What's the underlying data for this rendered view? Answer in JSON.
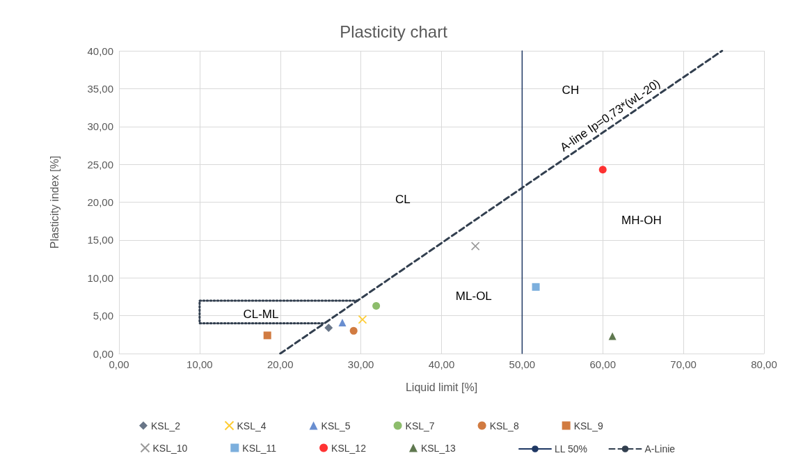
{
  "chart_data": {
    "type": "scatter",
    "title": "Plasticity chart",
    "xlabel": "Liquid limit [%]",
    "ylabel": "Plasticity index [%]",
    "xlim": [
      0,
      80
    ],
    "ylim": [
      0,
      40
    ],
    "xticks": [
      {
        "value": 0,
        "label": "0,00"
      },
      {
        "value": 10,
        "label": "10,00"
      },
      {
        "value": 20,
        "label": "20,00"
      },
      {
        "value": 30,
        "label": "30,00"
      },
      {
        "value": 40,
        "label": "40,00"
      },
      {
        "value": 50,
        "label": "50,00"
      },
      {
        "value": 60,
        "label": "60,00"
      },
      {
        "value": 70,
        "label": "70,00"
      },
      {
        "value": 80,
        "label": "80,00"
      }
    ],
    "yticks": [
      {
        "value": 0,
        "label": "0,00"
      },
      {
        "value": 5,
        "label": "5,00"
      },
      {
        "value": 10,
        "label": "10,00"
      },
      {
        "value": 15,
        "label": "15,00"
      },
      {
        "value": 20,
        "label": "20,00"
      },
      {
        "value": 25,
        "label": "25,00"
      },
      {
        "value": 30,
        "label": "30,00"
      },
      {
        "value": 35,
        "label": "35,00"
      },
      {
        "value": 40,
        "label": "40,00"
      }
    ],
    "grid": true,
    "legend": "bottom",
    "series": [
      {
        "name": "KSL_2",
        "color": "#44546a",
        "marker": "diamond",
        "x": [
          26.0
        ],
        "values": [
          3.4
        ]
      },
      {
        "name": "KSL_4",
        "color": "#ffc000",
        "marker": "cross",
        "x": [
          30.2
        ],
        "values": [
          4.5
        ]
      },
      {
        "name": "KSL_5",
        "color": "#4472c4",
        "marker": "triangle",
        "x": [
          27.7
        ],
        "values": [
          4.1
        ]
      },
      {
        "name": "KSL_7",
        "color": "#70ad47",
        "marker": "circle",
        "x": [
          31.9
        ],
        "values": [
          6.3
        ]
      },
      {
        "name": "KSL_8",
        "color": "#c55a11",
        "marker": "circle",
        "x": [
          29.1
        ],
        "values": [
          3.0
        ]
      },
      {
        "name": "KSL_9",
        "color": "#c55a11",
        "marker": "square",
        "x": [
          18.4
        ],
        "values": [
          2.4
        ]
      },
      {
        "name": "KSL_10",
        "color": "#7f7f7f",
        "marker": "cross",
        "x": [
          44.2
        ],
        "values": [
          14.2
        ]
      },
      {
        "name": "KSL_11",
        "color": "#5b9bd5",
        "marker": "square",
        "x": [
          51.7
        ],
        "values": [
          8.8
        ]
      },
      {
        "name": "KSL_12",
        "color": "#ff0000",
        "marker": "circle",
        "x": [
          60.0
        ],
        "values": [
          24.3
        ]
      },
      {
        "name": "KSL_13",
        "color": "#375623",
        "marker": "triangle",
        "x": [
          61.2
        ],
        "values": [
          2.3
        ]
      },
      {
        "name": "LL 50%",
        "type": "line",
        "color": "#1f3864",
        "marker": "none",
        "line_style": "solid",
        "x": [
          50,
          50
        ],
        "values": [
          0,
          40
        ]
      },
      {
        "name": "A-Linie",
        "type": "line",
        "color": "#323f4f",
        "marker": "none",
        "line_style": "dashed",
        "x": [
          20,
          74.8
        ],
        "values": [
          0,
          40.0
        ]
      },
      {
        "type": "line",
        "color": "#323f4f",
        "marker": "none",
        "line_style": "dotted",
        "x": [
          29.6,
          10,
          10,
          25.5
        ],
        "values": [
          7,
          7,
          4,
          4
        ]
      }
    ],
    "annotations": [
      "CH",
      "CL",
      "MH-OH",
      "ML-OL",
      "CL-ML",
      {
        "text": "A-line Ip=0,73*(wL-20)",
        "x": 61.6,
        "y": 30.4
      }
    ]
  }
}
